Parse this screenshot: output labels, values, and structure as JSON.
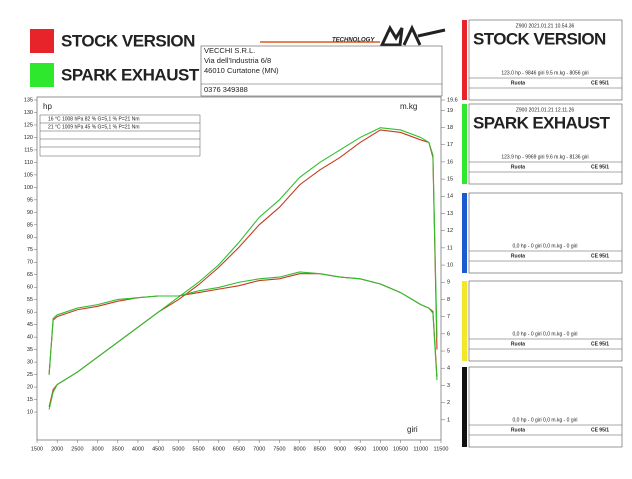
{
  "header": {
    "legend_logo": "TECHNOLOGY",
    "address": [
      "VECCHI S.R.L.",
      "Via dell'Industria 6/8",
      "46010 Curtatone (MN)",
      "0376 349388"
    ],
    "conditions": [
      "16 °C   1008 hPa   82 %   G=5,1 %   P=21 Nm",
      "21 °C   1009 hPa   45 %   G=5,1 %   P=21 Nm"
    ]
  },
  "panels": [
    {
      "info": "Z900     2021.01.21 10.54.36",
      "title": "STOCK VERSION",
      "result": "123.0 hp - 9846 giri     9.5 m.kg - 8056 giri",
      "mode": "Ruota",
      "norm": "CE 95/1"
    },
    {
      "info": "Z900     2021.01.21 12.11.26",
      "title": "SPARK EXHAUST",
      "result": "123.9 hp - 9969 giri     9.6 m.kg - 8136 giri",
      "mode": "Ruota",
      "norm": "CE 95/1"
    },
    {
      "result": "0,0 hp - 0 giri     0,0 m.kg - 0 giri",
      "mode": "Ruota",
      "norm": "CE 95/1"
    },
    {
      "result": "0,0 hp - 0 giri     0,0 m.kg - 0 giri",
      "mode": "Ruota",
      "norm": "CE 95/1"
    },
    {
      "result": "0,0 hp - 0 giri     0,0 m.kg - 0 giri",
      "mode": "Ruota",
      "norm": "CE 95/1"
    }
  ],
  "chart_data": {
    "type": "line",
    "ylabel": "hp",
    "y2label": "m.kg",
    "xlabel": "giri",
    "grid": false,
    "x": [
      1800,
      1900,
      2000,
      2500,
      3000,
      3500,
      4000,
      4500,
      5000,
      5500,
      6000,
      6500,
      7000,
      7500,
      8000,
      8500,
      9000,
      9500,
      10000,
      10500,
      11000,
      11200,
      11300,
      11400
    ],
    "series": [
      {
        "name": "STOCK VERSION",
        "color": "#c8391f",
        "values": [
          12,
          19,
          21,
          26,
          32,
          38,
          44,
          50,
          55,
          61,
          68,
          76,
          85,
          92,
          101,
          107,
          112,
          118,
          123,
          122,
          119,
          118,
          112,
          35
        ]
      },
      {
        "name": "SPARK EXHAUST",
        "color": "#2fbf2f",
        "values": [
          11,
          18,
          21,
          26,
          32,
          38,
          44,
          50,
          56,
          62,
          69,
          78,
          88,
          95,
          104,
          110,
          115,
          120,
          123.9,
          123,
          120,
          118,
          113,
          40
        ]
      },
      {
        "color": "#c8391f",
        "axis": "y2",
        "values": [
          3.7,
          6.8,
          7.0,
          7.4,
          7.6,
          7.9,
          8.1,
          8.2,
          8.2,
          8.4,
          8.6,
          8.8,
          9.1,
          9.2,
          9.5,
          9.5,
          9.3,
          9.2,
          8.9,
          8.4,
          7.7,
          7.5,
          7.3,
          3.5
        ]
      },
      {
        "color": "#2fbf2f",
        "axis": "y2",
        "values": [
          3.6,
          6.9,
          7.1,
          7.5,
          7.7,
          8.0,
          8.1,
          8.2,
          8.2,
          8.5,
          8.7,
          9.0,
          9.2,
          9.3,
          9.6,
          9.5,
          9.3,
          9.2,
          8.9,
          8.4,
          7.7,
          7.5,
          7.2,
          3.3
        ]
      }
    ],
    "xlim": [
      1500,
      11500
    ],
    "xticks": [
      1500,
      2000,
      2500,
      3000,
      3500,
      4000,
      4500,
      5000,
      5500,
      6000,
      6500,
      7000,
      7500,
      8000,
      8500,
      9000,
      9500,
      10000,
      10500,
      11000,
      11500
    ],
    "ylim": [
      0,
      135
    ],
    "yticks": [
      10,
      15,
      20,
      25,
      30,
      35,
      40,
      45,
      50,
      55,
      60,
      65,
      70,
      75,
      80,
      85,
      90,
      95,
      100,
      105,
      110,
      115,
      120,
      125,
      130,
      135
    ],
    "y2lim": [
      0,
      19.6
    ],
    "y2ticks": [
      1,
      2,
      3,
      4,
      5,
      6,
      7,
      8,
      9,
      10,
      11,
      12,
      13,
      14,
      15,
      16,
      17,
      18,
      19,
      19.6
    ]
  }
}
